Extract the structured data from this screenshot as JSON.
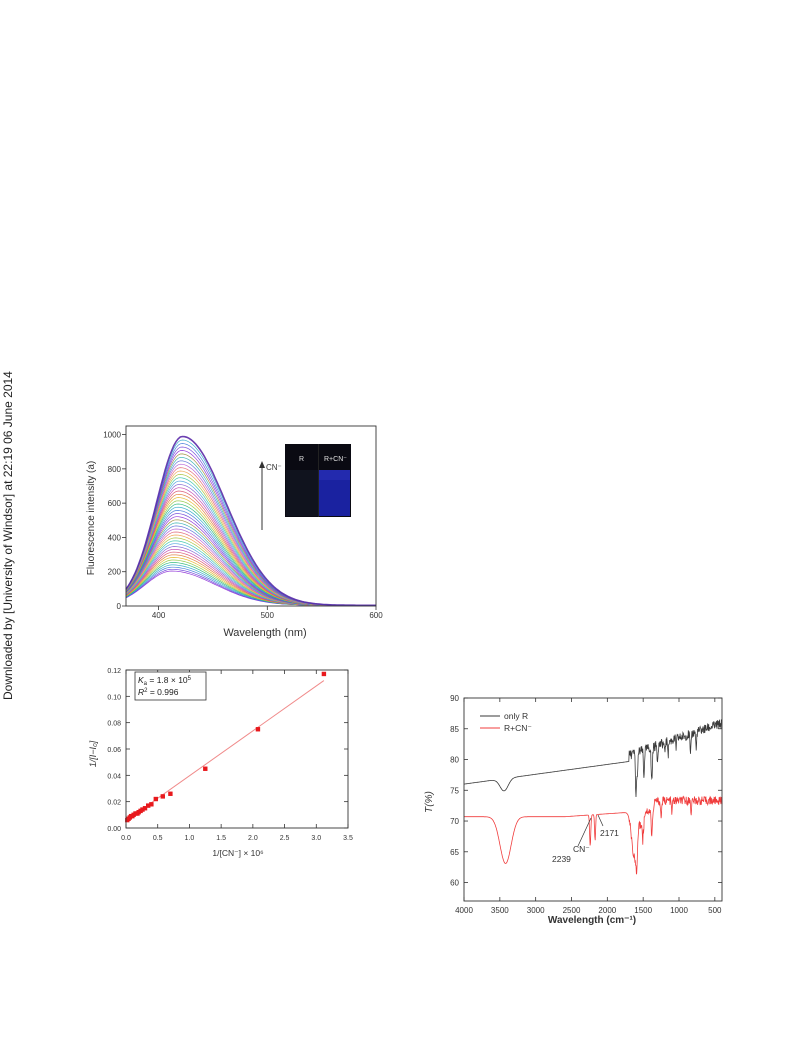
{
  "watermark": {
    "text": "Downloaded by [University of Windsor] at 22:19 06 June 2014"
  },
  "colors": {
    "red": "#e8191d",
    "redLine": "#f08a8a",
    "black": "#3a3a3a",
    "irRed": "#f03c3c",
    "inset_bg": "#0a0a12",
    "inset_blue": "#1a22a0"
  },
  "chart_data": [
    {
      "type": "line",
      "name": "fluorescence",
      "xlabel": "Wavelength (nm)",
      "ylabel": "Fluorescence intensity  (a)",
      "xlim": [
        370,
        600
      ],
      "ylim": [
        0,
        1050
      ],
      "xticks": [
        400,
        500,
        600
      ],
      "yticks": [
        0,
        200,
        400,
        600,
        800,
        1000
      ],
      "grid": false,
      "peak_wavelength": 420,
      "curve_peaks_min": 200,
      "curve_peaks_max": 985,
      "curve_count": 45,
      "annotation": {
        "arrow_label": "CN⁻"
      },
      "inset": {
        "labels": [
          "R",
          "R+CN⁻"
        ]
      }
    },
    {
      "type": "scatter",
      "name": "benesi-hildebrand",
      "xlabel": "1/[CN⁻] × 10⁶",
      "ylabel": "1/[I−I₀]",
      "xlim": [
        0,
        3.5
      ],
      "ylim": [
        0,
        0.12
      ],
      "xticks": [
        0.0,
        0.5,
        1.0,
        1.5,
        2.0,
        2.5,
        3.0,
        3.5
      ],
      "yticks": [
        0.0,
        0.02,
        0.04,
        0.06,
        0.08,
        0.1,
        0.12
      ],
      "points": {
        "x": [
          0.02,
          0.04,
          0.06,
          0.08,
          0.1,
          0.12,
          0.15,
          0.18,
          0.2,
          0.23,
          0.26,
          0.3,
          0.35,
          0.4,
          0.47,
          0.58,
          0.7,
          1.25,
          2.08,
          3.12
        ],
        "y": [
          0.006,
          0.007,
          0.008,
          0.009,
          0.009,
          0.01,
          0.011,
          0.011,
          0.012,
          0.013,
          0.014,
          0.015,
          0.017,
          0.018,
          0.022,
          0.024,
          0.026,
          0.045,
          0.075,
          0.117
        ]
      },
      "fit": {
        "x": [
          0.0,
          3.12
        ],
        "y": [
          0.0055,
          0.112
        ]
      },
      "legend": {
        "ka_prefix": "K",
        "ka_sub": "a",
        "ka_value": " = 1.8 × 10",
        "ka_exp": "5",
        "r2_prefix": "R",
        "r2_exp": "2",
        "r2_value": " = 0.996"
      }
    },
    {
      "type": "line",
      "name": "ir-spectrum",
      "xlabel": "Wavelength (cm⁻¹)",
      "ylabel": "T(%)",
      "xlim": [
        4000,
        400
      ],
      "ylim": [
        57,
        90
      ],
      "xticks": [
        4000,
        3500,
        3000,
        2500,
        2000,
        1500,
        1000,
        500
      ],
      "yticks": [
        60,
        65,
        70,
        75,
        80,
        85,
        90
      ],
      "legend_placement": "top-left",
      "series": [
        {
          "name": "only R",
          "color": "#3a3a3a"
        },
        {
          "name": "R+CN⁻",
          "color": "#f03c3c"
        }
      ],
      "annotations": [
        {
          "label": "2171",
          "x": 2171
        },
        {
          "label": "2239",
          "x": 2239
        },
        {
          "label": "CN⁻"
        }
      ]
    }
  ]
}
